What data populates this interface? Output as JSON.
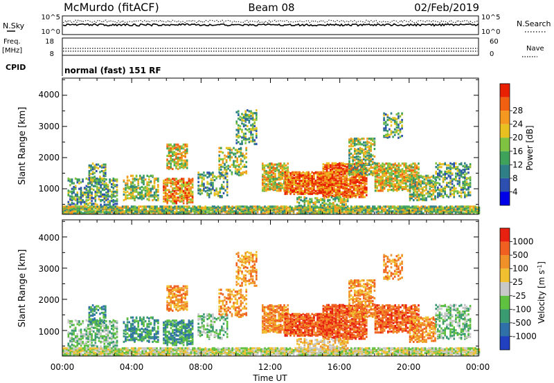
{
  "header": {
    "station": "McMurdo (fitACF)",
    "beam": "Beam 08",
    "date": "02/Feb/2019"
  },
  "top_panels": {
    "nsky_label": "N.Sky",
    "nsky_ticks": [
      "10^5",
      "10^0"
    ],
    "nsearch_label": "N.Search",
    "nsearch_ticks": [
      "10^5",
      "10^0"
    ],
    "freq_label": "Freq.",
    "freq_unit": "[MHz]",
    "freq_ticks": [
      "18",
      "8"
    ],
    "nave_label": "Nave",
    "nave_ticks": [
      "60",
      "0"
    ],
    "cpid_label": "CPID",
    "cpid_text": "normal (fast) 151 RF"
  },
  "chart_data": [
    {
      "type": "heatmap",
      "panel": "power",
      "ylabel": "Slant Range [km]",
      "yticks": [
        "1000",
        "2000",
        "3000",
        "4000"
      ],
      "ylim": [
        180,
        4550
      ],
      "xlim_hours": [
        0,
        24
      ],
      "colorbar_label": "Power [dB]",
      "colorbar_ticks": [
        "4",
        "8",
        "12",
        "16",
        "20",
        "24",
        "28"
      ],
      "colors": [
        "#0000e8",
        "#2c4fb0",
        "#2f7f86",
        "#3fa25a",
        "#7fc240",
        "#e8c020",
        "#f59820",
        "#f06010",
        "#e82000"
      ]
    },
    {
      "type": "heatmap",
      "panel": "velocity",
      "ylabel": "Slant Range [km]",
      "yticks": [
        "1000",
        "2000",
        "3000",
        "4000"
      ],
      "ylim": [
        180,
        4550
      ],
      "xlim_hours": [
        0,
        24
      ],
      "colorbar_label": "Velocity [m s",
      "colorbar_label_sup": "-1",
      "colorbar_label_close": "]",
      "colorbar_ticks": [
        "1000",
        "500",
        "100",
        "25",
        "-25",
        "-100",
        "-500",
        "-1000"
      ],
      "colors": [
        "#2040c0",
        "#3070a8",
        "#3a9a70",
        "#60c040",
        "#c8c8c8",
        "#f0c030",
        "#f09028",
        "#f06020",
        "#e82010"
      ]
    }
  ],
  "xaxis": {
    "ticks": [
      "00:00",
      "04:00",
      "08:00",
      "12:00",
      "16:00",
      "20:00",
      "00:00"
    ],
    "label": "Time UT"
  }
}
